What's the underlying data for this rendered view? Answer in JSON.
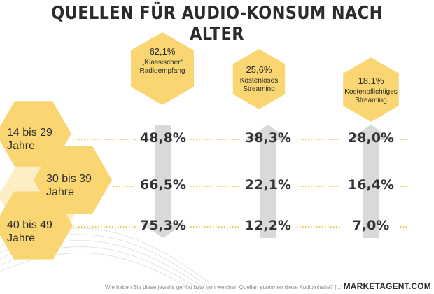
{
  "title": "QUELLEN FÜR AUDIO-KONSUM NACH ALTER",
  "footnote": "Wie haben Sie diese jeweils gehört bzw. von welchen Quellen stammen diese Audioinhalte? [...]",
  "brand": "MARKETAGENT.COM",
  "colors": {
    "hex_fill": "#f9d671",
    "hex_light": "#fbe3a0",
    "arrow": "#d9d9d9",
    "dots": "#e0b400",
    "text": "#333333"
  },
  "chart_data": {
    "type": "table",
    "title": "QUELLEN FÜR AUDIO-KONSUM NACH ALTER",
    "columns": [
      {
        "percent": "62,1%",
        "label": "„Klassischer“ Radioempfang",
        "total": 62.1,
        "arrow": "down"
      },
      {
        "percent": "25,6%",
        "label": "Kostenloses Streaming",
        "total": 25.6,
        "arrow": "up"
      },
      {
        "percent": "18,1%",
        "label": "Kostenpflichtiges Streaming",
        "total": 18.1,
        "arrow": "up"
      }
    ],
    "rows": [
      {
        "label": "14 bis 29 Jahre",
        "values": [
          48.8,
          38.3,
          28.0
        ],
        "display": [
          "48,8%",
          "38,3%",
          "28,0%"
        ]
      },
      {
        "label": "30 bis 39 Jahre",
        "values": [
          66.5,
          22.1,
          16.4
        ],
        "display": [
          "66,5%",
          "22,1%",
          "16,4%"
        ]
      },
      {
        "label": "40 bis 49 Jahre",
        "values": [
          75.3,
          12.2,
          7.0
        ],
        "display": [
          "75,3%",
          "12,2%",
          "7,0%"
        ]
      }
    ]
  }
}
